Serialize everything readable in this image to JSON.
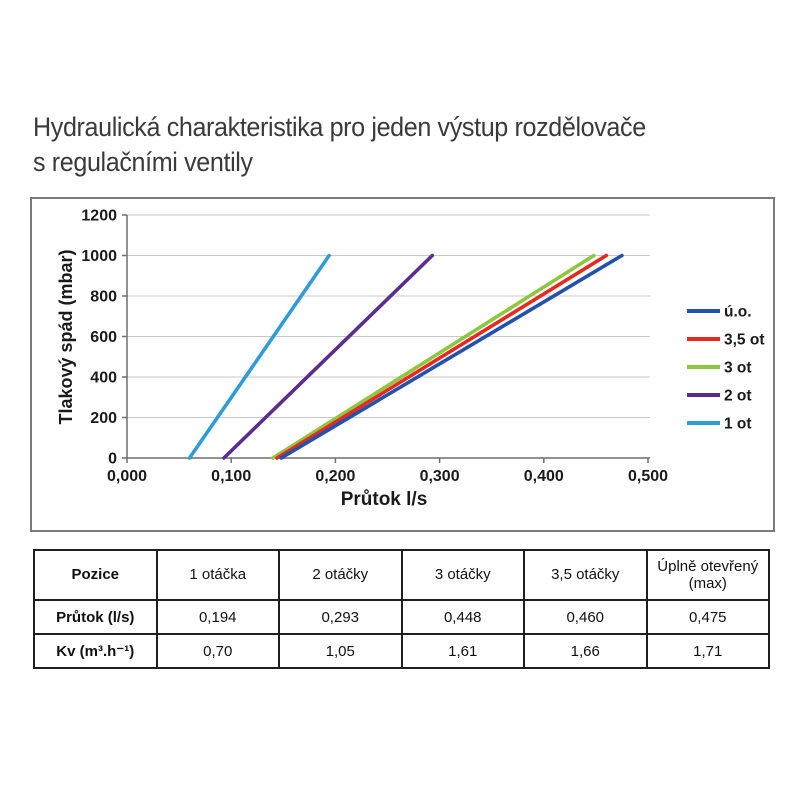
{
  "header": {
    "line1": "Hydraulická charakteristika pro jeden výstup rozdělovače",
    "line2": "s regulačními ventily"
  },
  "chart_data": {
    "type": "line",
    "title": "",
    "xlabel": "Průtok l/s",
    "ylabel": "Tlakový spád (mbar)",
    "xlim": [
      0,
      0.5
    ],
    "ylim": [
      0,
      1200
    ],
    "grid": "horizontal",
    "grid_color": "#c9c9c9",
    "axis_color": "#6e6e6e",
    "frame_color": "#7b7b7b",
    "legend_position": "right",
    "xticks": [
      {
        "v": 0.0,
        "label": "0,000"
      },
      {
        "v": 0.1,
        "label": "0,100"
      },
      {
        "v": 0.2,
        "label": "0,200"
      },
      {
        "v": 0.3,
        "label": "0,300"
      },
      {
        "v": 0.4,
        "label": "0,400"
      },
      {
        "v": 0.5,
        "label": "0,500"
      }
    ],
    "yticks": [
      {
        "v": 0,
        "label": "0"
      },
      {
        "v": 200,
        "label": "200"
      },
      {
        "v": 400,
        "label": "400"
      },
      {
        "v": 600,
        "label": "600"
      },
      {
        "v": 800,
        "label": "800"
      },
      {
        "v": 1000,
        "label": "1000"
      },
      {
        "v": 1200,
        "label": "1200"
      }
    ],
    "series": [
      {
        "name": "ú.o.",
        "color": "#2152B0",
        "points": [
          [
            0.148,
            0
          ],
          [
            0.475,
            1000
          ]
        ]
      },
      {
        "name": "3,5 ot",
        "color": "#E8291F",
        "points": [
          [
            0.144,
            0
          ],
          [
            0.46,
            1000
          ]
        ]
      },
      {
        "name": "3 ot",
        "color": "#8DC63F",
        "points": [
          [
            0.14,
            0
          ],
          [
            0.448,
            1000
          ]
        ]
      },
      {
        "name": "2 ot",
        "color": "#5B2D90",
        "points": [
          [
            0.093,
            0
          ],
          [
            0.293,
            1000
          ]
        ]
      },
      {
        "name": "1 ot",
        "color": "#2F9CD8",
        "points": [
          [
            0.06,
            0
          ],
          [
            0.194,
            1000
          ]
        ]
      }
    ]
  },
  "table": {
    "columns": [
      "Pozice",
      "1 otáčka",
      "2 otáčky",
      "3 otáčky",
      "3,5 otáčky",
      "Úplně otevřený (max)"
    ],
    "rows": [
      {
        "label": "Průtok (l/s)",
        "values": [
          "0,194",
          "0,293",
          "0,448",
          "0,460",
          "0,475"
        ]
      },
      {
        "label": "Kv (m³.h⁻¹)",
        "values": [
          "0,70",
          "1,05",
          "1,61",
          "1,66",
          "1,71"
        ]
      }
    ]
  }
}
